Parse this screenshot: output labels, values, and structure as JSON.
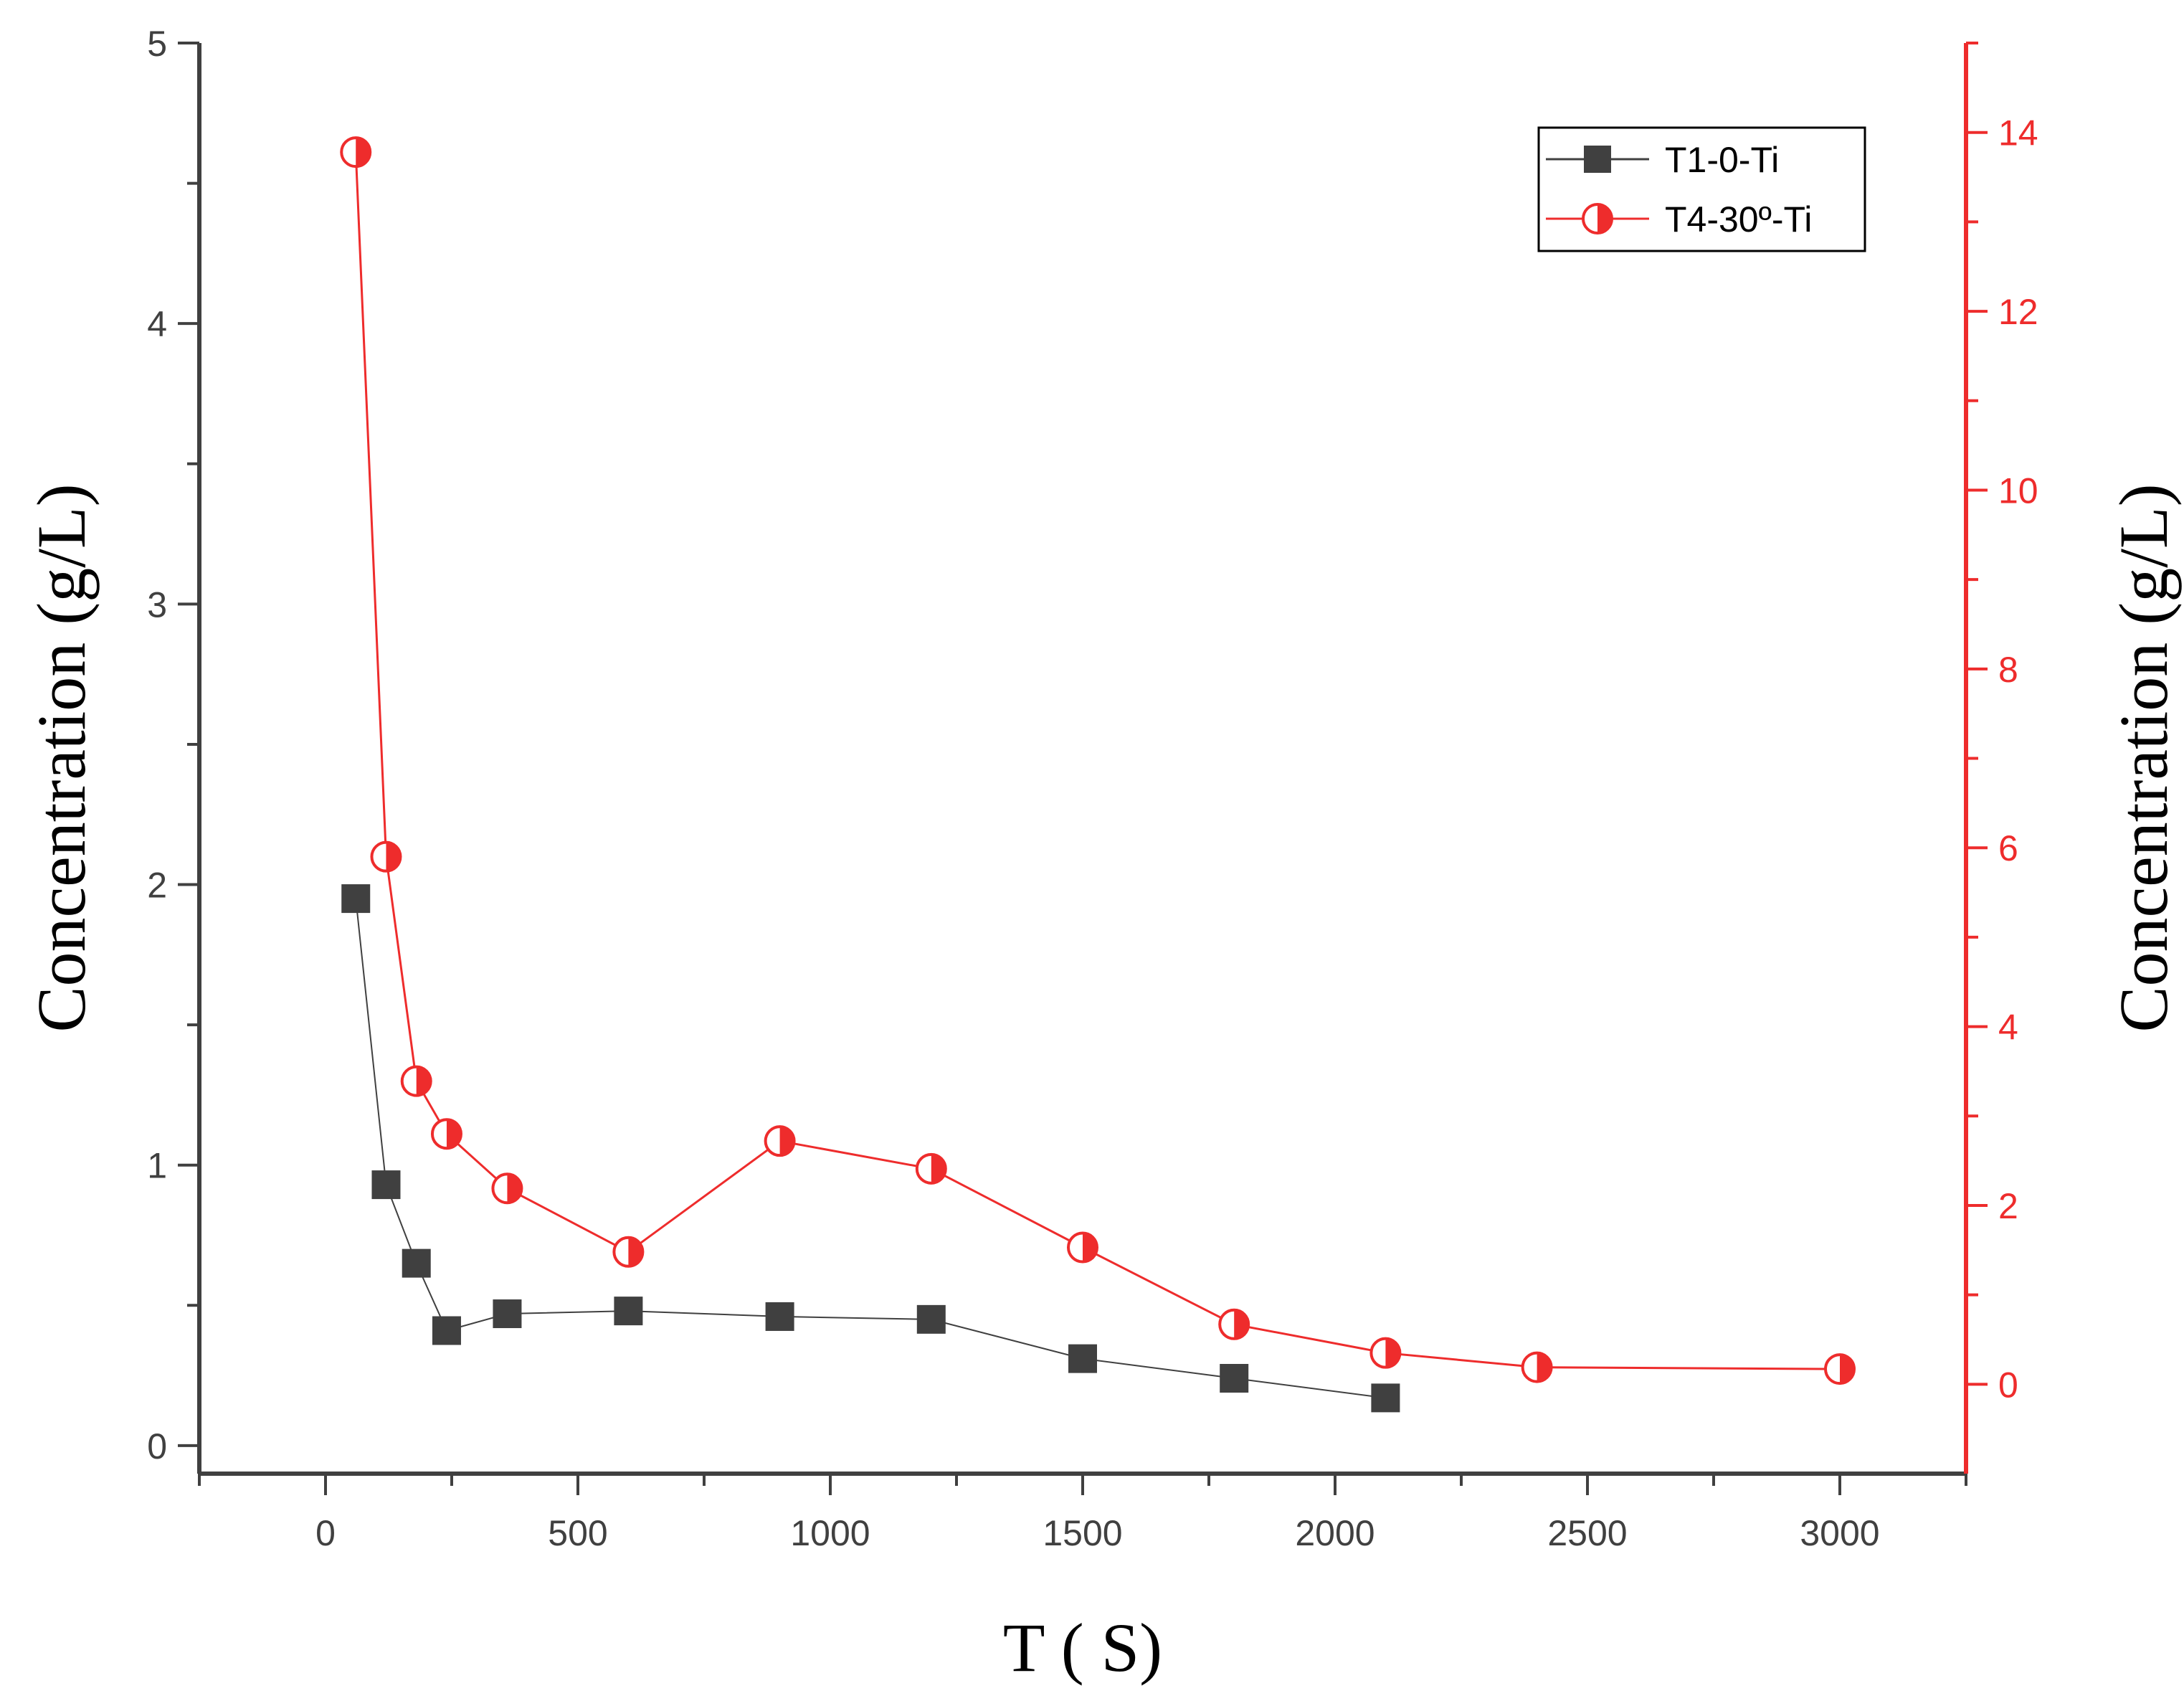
{
  "chart_data": {
    "type": "line",
    "xlabel": "T ( S)",
    "ylabel_left": "Concentration (g/L)",
    "ylabel_right": "Concentration (g/L)",
    "xlim": [
      -250,
      3250
    ],
    "ylim_left": [
      -0.1,
      5.0
    ],
    "ylim_right": [
      -1.0,
      15.0
    ],
    "x_ticks": [
      0,
      500,
      1000,
      1500,
      2000,
      2500,
      3000
    ],
    "y_left_ticks": [
      0,
      1,
      2,
      3,
      4,
      5
    ],
    "y_right_ticks": [
      0,
      2,
      4,
      6,
      8,
      10,
      12,
      14
    ],
    "legend_position": "top-right",
    "series": [
      {
        "name": "T1-0-Ti",
        "axis": "left",
        "color": "#404040",
        "marker": "square",
        "x": [
          60,
          120,
          180,
          240,
          360,
          600,
          900,
          1200,
          1500,
          1800,
          2100
        ],
        "y": [
          1.95,
          0.93,
          0.65,
          0.41,
          0.47,
          0.48,
          0.46,
          0.45,
          0.31,
          0.24,
          0.17
        ]
      },
      {
        "name": "T4-30º-Ti",
        "axis": "right",
        "color": "#ee2c2c",
        "marker": "half-filled-circle",
        "x": [
          60,
          120,
          180,
          240,
          360,
          600,
          900,
          1200,
          1500,
          1800,
          2100,
          2400,
          3000
        ],
        "y": [
          13.78,
          5.9,
          3.39,
          2.8,
          2.19,
          1.48,
          2.72,
          2.41,
          1.53,
          0.67,
          0.35,
          0.19,
          0.17
        ]
      }
    ]
  }
}
